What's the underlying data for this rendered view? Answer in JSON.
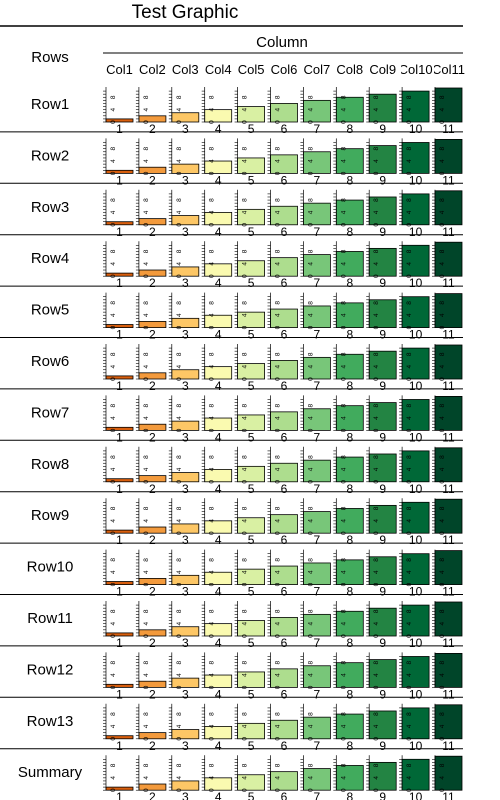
{
  "chart_data": {
    "type": "bar",
    "title": "Test Graphic",
    "row_header": "Rows",
    "column_header": "Column",
    "columns": [
      "Col1",
      "Col2",
      "Col3",
      "Col4",
      "Col5",
      "Col6",
      "Col7",
      "Col8",
      "Col9",
      "Col10",
      "Col11"
    ],
    "rows": [
      "Row1",
      "Row2",
      "Row3",
      "Row4",
      "Row5",
      "Row6",
      "Row7",
      "Row8",
      "Row9",
      "Row10",
      "Row11",
      "Row12",
      "Row13",
      "Summary"
    ],
    "x_tick_labels": [
      "1",
      "2",
      "3",
      "4",
      "5",
      "6",
      "7",
      "8",
      "9",
      "10",
      "11"
    ],
    "y_tick_labels": [
      "0",
      "4",
      "8"
    ],
    "ylim": [
      0,
      11
    ],
    "values": [
      1,
      2,
      3,
      4,
      5,
      6,
      7,
      8,
      9,
      10,
      11
    ],
    "colors": [
      "#d95f0e",
      "#f39a3c",
      "#fdc766",
      "#fafab0",
      "#d9f0a3",
      "#addd8e",
      "#78c679",
      "#41ab5d",
      "#238443",
      "#006837",
      "#004529"
    ],
    "grid": false,
    "legend": "none"
  }
}
